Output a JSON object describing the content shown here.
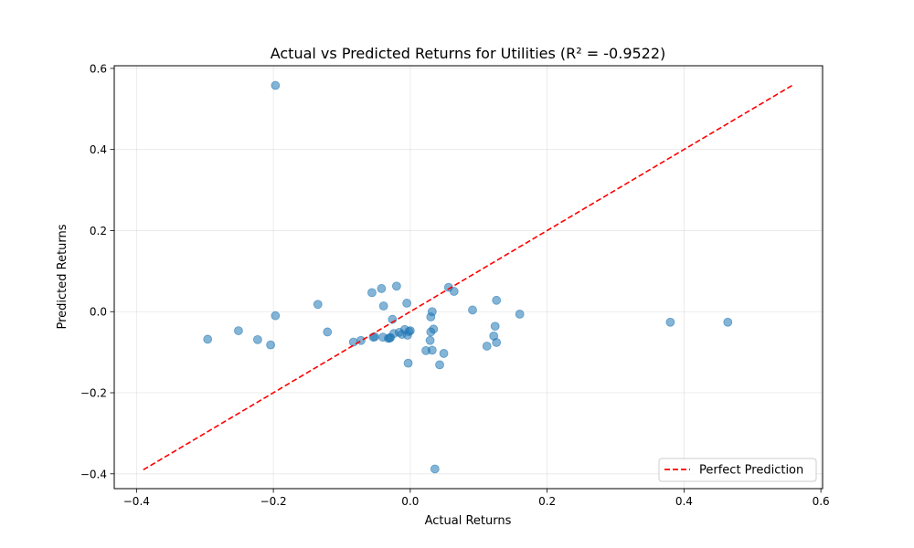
{
  "chart_data": {
    "type": "scatter",
    "title": "Actual vs Predicted Returns for Utilities (R² = -0.9522)",
    "xlabel": "Actual Returns",
    "ylabel": "Predicted Returns",
    "xlim": [
      -0.4325,
      0.6025
    ],
    "ylim": [
      -0.4365,
      0.6065
    ],
    "xticks": [
      -0.4,
      -0.2,
      0.0,
      0.2,
      0.4,
      0.6
    ],
    "yticks": [
      -0.4,
      -0.2,
      0.0,
      0.2,
      0.4,
      0.6
    ],
    "xtick_labels": [
      "−0.4",
      "−0.2",
      "0.0",
      "0.2",
      "0.4",
      "0.6"
    ],
    "ytick_labels": [
      "−0.4",
      "−0.2",
      "0.0",
      "0.2",
      "0.4",
      "0.6"
    ],
    "grid": true,
    "legend": {
      "position": "bottom-right",
      "entries": [
        "Perfect Prediction"
      ]
    },
    "colors": {
      "points": "#1f77b4",
      "perfect_line": "#ff0000"
    },
    "perfect_line": {
      "name": "Perfect Prediction",
      "x": [
        -0.39,
        0.56
      ],
      "y": [
        -0.39,
        0.56
      ]
    },
    "points": {
      "x": [
        -0.197,
        -0.296,
        -0.251,
        -0.223,
        -0.204,
        -0.197,
        -0.135,
        -0.121,
        -0.083,
        -0.072,
        -0.056,
        -0.054,
        -0.052,
        -0.042,
        -0.04,
        -0.039,
        -0.032,
        -0.03,
        -0.029,
        -0.026,
        -0.024,
        -0.02,
        -0.016,
        -0.012,
        -0.008,
        -0.005,
        -0.004,
        -0.003,
        -0.002,
        0.0,
        0.023,
        0.029,
        0.03,
        0.03,
        0.032,
        0.032,
        0.034,
        0.036,
        0.043,
        0.049,
        0.056,
        0.064,
        0.091,
        0.112,
        0.122,
        0.124,
        0.126,
        0.126,
        0.16,
        0.38,
        0.464
      ],
      "y": [
        0.558,
        -0.068,
        -0.047,
        -0.069,
        -0.082,
        -0.01,
        0.018,
        -0.05,
        -0.075,
        -0.071,
        0.047,
        -0.063,
        -0.062,
        0.057,
        -0.063,
        0.014,
        -0.066,
        -0.065,
        -0.064,
        -0.019,
        -0.054,
        0.063,
        -0.051,
        -0.056,
        -0.044,
        0.021,
        -0.058,
        -0.127,
        -0.049,
        -0.047,
        -0.096,
        -0.071,
        -0.05,
        -0.013,
        0.0,
        -0.095,
        -0.043,
        -0.388,
        -0.131,
        -0.103,
        0.06,
        0.05,
        0.004,
        -0.085,
        -0.06,
        -0.036,
        -0.076,
        0.028,
        -0.006,
        -0.026,
        -0.026
      ]
    }
  }
}
